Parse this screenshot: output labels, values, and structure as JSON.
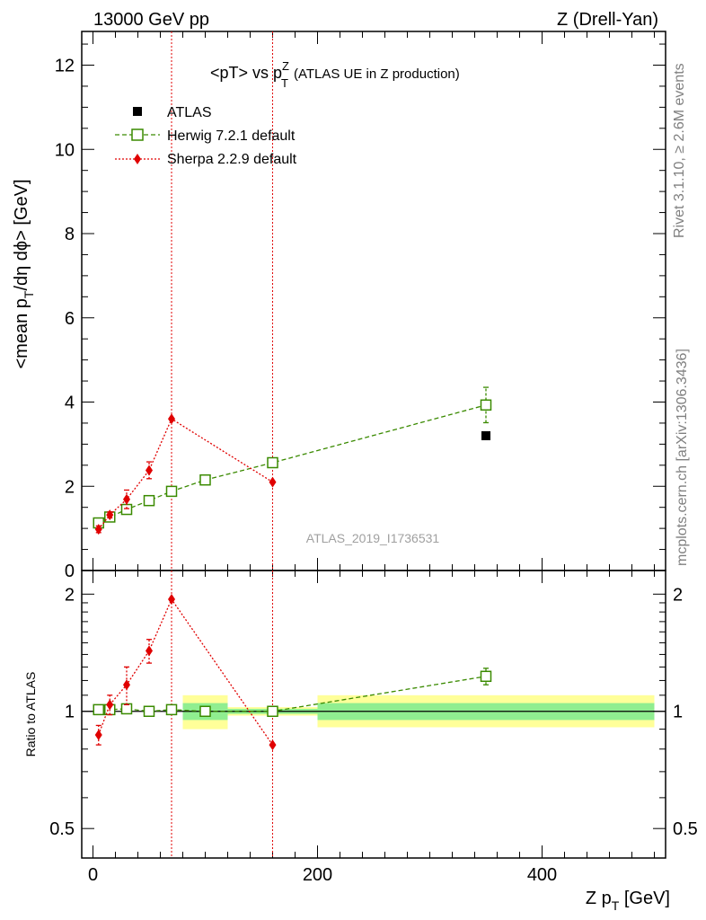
{
  "header": {
    "energy_label": "13000 GeV pp",
    "process_label": "Z (Drell-Yan)"
  },
  "plot_title": {
    "main": "<pT> vs p",
    "sup": "Z",
    "sub": "T",
    "suffix": "(ATLAS UE in Z production)"
  },
  "analysis_id": "ATLAS_2019_I1736531",
  "side_labels": {
    "rivet": "Rivet 3.1.10, ≥ 2.6M events",
    "source": "mcplots.cern.ch [arXiv:1306.3436]"
  },
  "axes": {
    "ylabel_main": "<mean p_T/dη dϕ> [GeV]",
    "ylabel_ratio": "Ratio to ATLAS",
    "xlabel": "Z p_T [GeV]"
  },
  "legend": {
    "atlas": "ATLAS",
    "herwig": "Herwig 7.2.1 default",
    "sherpa": "Sherpa 2.2.9 default"
  },
  "colors": {
    "atlas": "#000000",
    "herwig": "#3a8a00",
    "sherpa": "#e00000",
    "band_inner": "#90ee90",
    "band_outer": "#ffff99"
  },
  "chart_data": [
    {
      "type": "scatter",
      "panel": "main",
      "xlim": [
        -10,
        510
      ],
      "ylim": [
        0,
        12.8
      ],
      "xticks": [
        0,
        200,
        400
      ],
      "yticks": [
        0,
        2,
        4,
        6,
        8,
        10,
        12
      ],
      "ytick_labels": [
        "0",
        "2",
        "4",
        "6",
        "8",
        "10",
        "12"
      ],
      "series": [
        {
          "name": "ATLAS",
          "x": [
            5,
            15,
            30,
            50,
            70,
            100,
            160,
            350
          ],
          "y": [
            1.12,
            1.27,
            1.44,
            1.66,
            1.86,
            2.15,
            2.56,
            3.2
          ]
        },
        {
          "name": "Herwig 7.2.1 default",
          "x": [
            5,
            15,
            30,
            50,
            70,
            100,
            160,
            350
          ],
          "y": [
            1.13,
            1.27,
            1.45,
            1.66,
            1.88,
            2.15,
            2.56,
            3.93
          ],
          "yerr": [
            0.04,
            0.04,
            0.04,
            0.04,
            0.04,
            0.04,
            0.06,
            0.42
          ]
        },
        {
          "name": "Sherpa 2.2.9 default",
          "x": [
            5,
            15,
            30,
            50,
            70,
            160
          ],
          "y": [
            0.98,
            1.32,
            1.69,
            2.38,
            3.6,
            2.1
          ],
          "yerr": [
            0.08,
            0.07,
            0.22,
            0.2,
            0.0,
            0.0
          ]
        }
      ],
      "vertical_lines_x": [
        70,
        160
      ]
    },
    {
      "type": "scatter",
      "panel": "ratio",
      "ylim": [
        0.42,
        2.3
      ],
      "yticks": [
        0.5,
        1,
        2
      ],
      "ytick_labels": [
        "0.5",
        "1",
        "2"
      ],
      "xtick_labels": [
        "0",
        "200",
        "400"
      ],
      "bands": [
        {
          "x0": 80,
          "x1": 120,
          "inner": [
            0.95,
            1.05
          ],
          "outer": [
            0.9,
            1.1
          ]
        },
        {
          "x0": 120,
          "x1": 200,
          "inner": [
            0.985,
            1.015
          ],
          "outer": [
            0.975,
            1.025
          ]
        },
        {
          "x0": 200,
          "x1": 500,
          "inner": [
            0.95,
            1.05
          ],
          "outer": [
            0.91,
            1.1
          ]
        }
      ],
      "series": [
        {
          "name": "Herwig 7.2.1 default",
          "x": [
            5,
            15,
            30,
            50,
            70,
            100,
            160,
            350
          ],
          "y": [
            1.01,
            1.01,
            1.015,
            1.0,
            1.01,
            1.0,
            1.0,
            1.23
          ],
          "yerr": [
            0.02,
            0.02,
            0.02,
            0.02,
            0.02,
            0.02,
            0.02,
            0.06
          ]
        },
        {
          "name": "Sherpa 2.2.9 default",
          "x": [
            5,
            15,
            30,
            50,
            70,
            160
          ],
          "y": [
            0.87,
            1.04,
            1.17,
            1.43,
            1.94,
            0.82
          ],
          "yerr": [
            0.05,
            0.06,
            0.13,
            0.1,
            0.0,
            0.0
          ]
        }
      ]
    }
  ]
}
